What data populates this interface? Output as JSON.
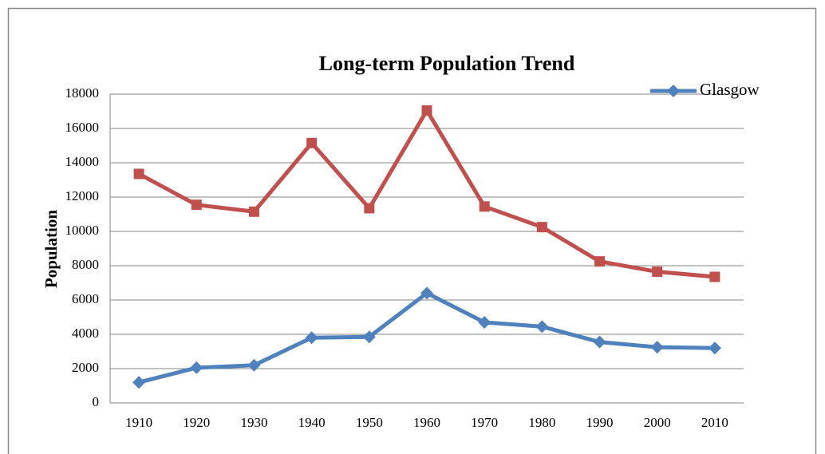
{
  "chart_data": {
    "type": "line",
    "title": "Long-term Population Trend",
    "y_label": "Population",
    "categories": [
      "1910",
      "1920",
      "1930",
      "1940",
      "1950",
      "1960",
      "1970",
      "1980",
      "1990",
      "2000",
      "2010"
    ],
    "series": [
      {
        "name": "Glasgow",
        "color": "#4f81bd",
        "marker": "diamond",
        "values": [
          1200,
          2050,
          2200,
          3800,
          3850,
          6400,
          4700,
          4450,
          3550,
          3250,
          3200
        ]
      },
      {
        "color": "#c0504d",
        "marker": "square",
        "values": [
          13350,
          11550,
          11150,
          15150,
          11350,
          17050,
          11450,
          10250,
          8250,
          7650,
          7350
        ]
      }
    ],
    "ylim": [
      0,
      18000
    ],
    "yticks": [
      0,
      2000,
      4000,
      6000,
      8000,
      10000,
      12000,
      14000,
      16000,
      18000
    ],
    "grid": true,
    "legend": "top-right"
  }
}
